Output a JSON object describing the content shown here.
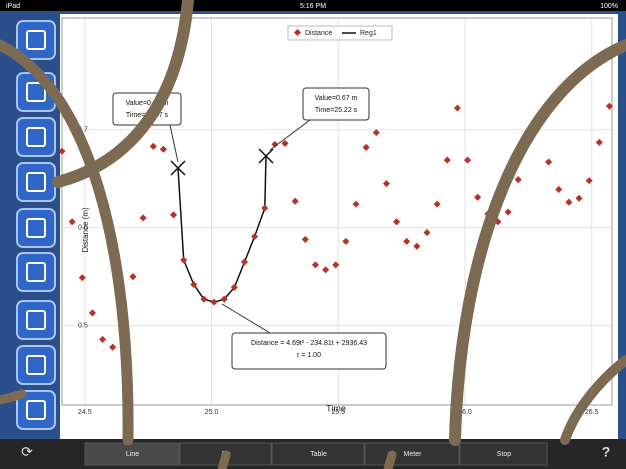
{
  "status_bar": {
    "device": "iPad",
    "time": "5:16 PM",
    "battery": "100%"
  },
  "chart_data": {
    "type": "scatter",
    "x_label": "Time",
    "y_label": "Distance (m)",
    "series": [
      {
        "name": "Distance",
        "color": "#b8322a",
        "x": [
          24.41,
          24.45,
          24.49,
          24.53,
          24.57,
          24.61,
          24.65,
          24.69,
          24.73,
          24.77,
          24.81,
          24.85,
          24.89,
          24.93,
          24.97,
          25.01,
          25.05,
          25.09,
          25.13,
          25.17,
          25.21,
          25.25,
          25.29,
          25.33,
          25.37,
          25.41,
          25.45,
          25.49,
          25.53,
          25.57,
          25.61,
          25.65,
          25.69,
          25.73,
          25.77,
          25.81,
          25.85,
          25.89,
          25.93,
          25.97,
          26.01,
          26.05,
          26.09,
          26.13,
          26.17,
          26.21,
          26.25,
          26.29,
          26.33,
          26.37,
          26.41,
          26.45,
          26.49,
          26.53,
          26.57
        ],
        "values": [
          0.678,
          0.606,
          0.549,
          0.513,
          0.486,
          0.478,
          0.511,
          0.55,
          0.61,
          0.683,
          0.68,
          0.613,
          0.567,
          0.542,
          0.527,
          0.524,
          0.527,
          0.539,
          0.565,
          0.591,
          0.62,
          0.685,
          0.686,
          0.627,
          0.588,
          0.562,
          0.557,
          0.562,
          0.586,
          0.624,
          0.682,
          0.697,
          0.645,
          0.606,
          0.586,
          0.581,
          0.595,
          0.624,
          0.669,
          0.722,
          0.669,
          0.631,
          0.614,
          0.606,
          0.616,
          0.649,
          0.688,
          0.712,
          0.667,
          0.639,
          0.626,
          0.63,
          0.648,
          0.687,
          0.724
        ]
      }
    ],
    "fit_name": "Reg1",
    "fit_color": "#111111",
    "annotations": [
      [
        "Value=0.66 m",
        "Time=24.87 s"
      ],
      [
        "Value=0.67 m",
        "Time=25.22 s"
      ],
      [
        "Distance = 4.69t² - 234.81t + 2936.43",
        "r = 1.00"
      ]
    ],
    "xlim": [
      24.41,
      26.58
    ],
    "ylim": [
      0.419,
      0.814
    ],
    "xticks": [
      24.5,
      {
        "value": 25,
        "label": "25.0"
      },
      25.5,
      {
        "value": 26,
        "label": "26.0"
      },
      26.5
    ],
    "yticks": [
      0.5,
      0.6,
      0.7
    ],
    "grid": true
  },
  "toolbar": {
    "tabs": [
      "Line",
      "Str",
      "Table",
      "Meter",
      "Stop"
    ],
    "help": "?"
  }
}
